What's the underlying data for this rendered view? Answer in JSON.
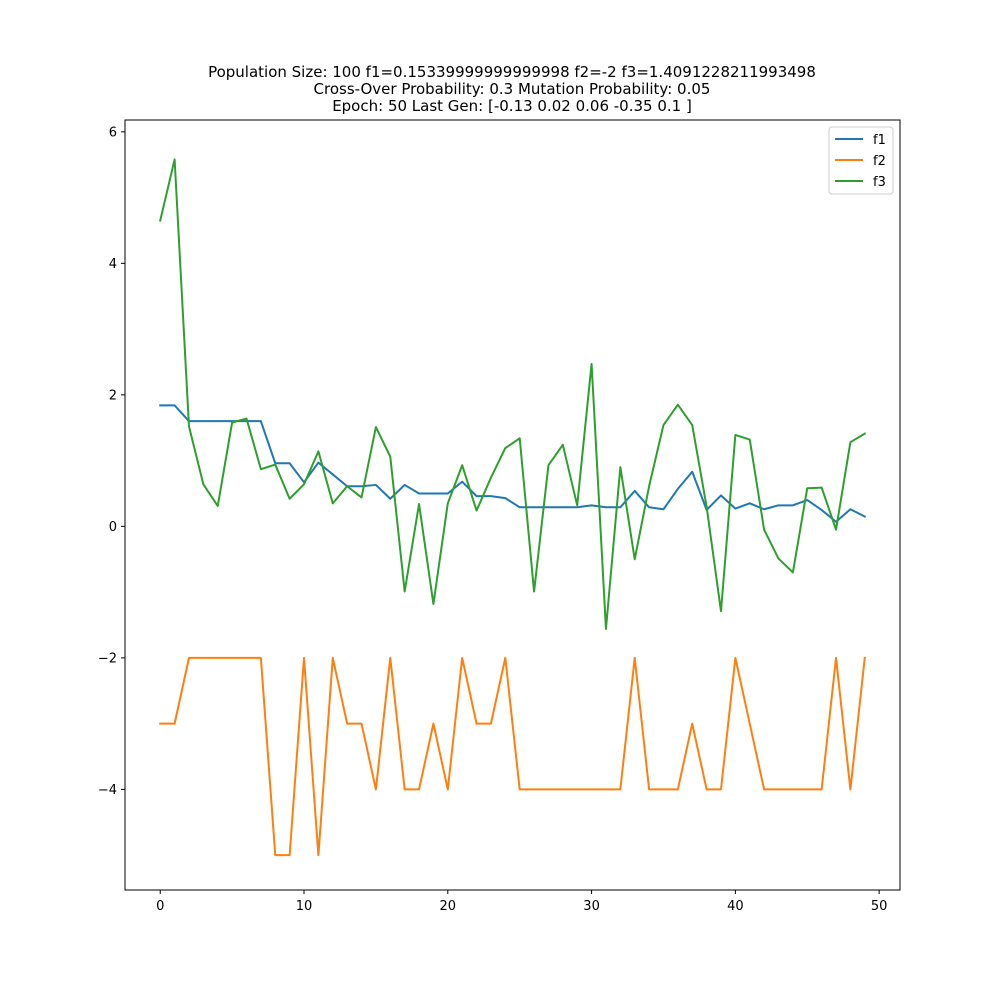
{
  "chart_data": {
    "type": "line",
    "title_lines": [
      "Population Size: 100 f1=0.15339999999999998 f2=-2 f3=1.4091228211993498",
      "Cross-Over Probability: 0.3 Mutation Probability: 0.05",
      "Epoch: 50 Last Gen: [-0.13  0.02  0.06 -0.35  0.1 ]"
    ],
    "xlabel": "",
    "ylabel": "",
    "xlim": [
      -2.45,
      51.45
    ],
    "ylim": [
      -5.53,
      6.18
    ],
    "xticks": [
      0,
      10,
      20,
      30,
      40,
      50
    ],
    "yticks": [
      6,
      4,
      2,
      0,
      -2,
      -4
    ],
    "ytick_labels": [
      "6",
      "4",
      "2",
      "0",
      "−2",
      "−4"
    ],
    "legend": "top-right",
    "grid": false,
    "x": [
      0,
      1,
      2,
      3,
      4,
      5,
      6,
      7,
      8,
      9,
      10,
      11,
      12,
      13,
      14,
      15,
      16,
      17,
      18,
      19,
      20,
      21,
      22,
      23,
      24,
      25,
      26,
      27,
      28,
      29,
      30,
      31,
      32,
      33,
      34,
      35,
      36,
      37,
      38,
      39,
      40,
      41,
      42,
      43,
      44,
      45,
      46,
      47,
      48,
      49
    ],
    "series": [
      {
        "name": "f1",
        "color": "#1f77b4",
        "values": [
          1.84,
          1.84,
          1.6,
          1.6,
          1.6,
          1.6,
          1.6,
          1.6,
          0.96,
          0.96,
          0.67,
          0.97,
          0.79,
          0.61,
          0.61,
          0.63,
          0.42,
          0.63,
          0.5,
          0.5,
          0.5,
          0.68,
          0.46,
          0.46,
          0.43,
          0.29,
          0.29,
          0.29,
          0.29,
          0.29,
          0.32,
          0.29,
          0.29,
          0.54,
          0.29,
          0.26,
          0.57,
          0.83,
          0.25,
          0.47,
          0.27,
          0.35,
          0.26,
          0.32,
          0.32,
          0.4,
          0.25,
          0.07,
          0.26,
          0.15
        ]
      },
      {
        "name": "f2",
        "color": "#ff7f0e",
        "values": [
          -3,
          -3,
          -2,
          -2,
          -2,
          -2,
          -2,
          -2,
          -5,
          -5,
          -2,
          -5,
          -2,
          -3,
          -3,
          -4,
          -2,
          -4,
          -4,
          -3,
          -4,
          -2,
          -3,
          -3,
          -2,
          -4,
          -4,
          -4,
          -4,
          -4,
          -4,
          -4,
          -4,
          -2,
          -4,
          -4,
          -4,
          -3,
          -4,
          -4,
          -2,
          -3,
          -4,
          -4,
          -4,
          -4,
          -4,
          -2,
          -4,
          -2
        ]
      },
      {
        "name": "f3",
        "color": "#2ca02c",
        "values": [
          4.65,
          5.58,
          1.52,
          0.64,
          0.31,
          1.58,
          1.64,
          0.87,
          0.94,
          0.42,
          0.64,
          1.14,
          0.35,
          0.61,
          0.44,
          1.51,
          1.06,
          -0.99,
          0.34,
          -1.18,
          0.35,
          0.93,
          0.24,
          0.74,
          1.19,
          1.34,
          -0.99,
          0.93,
          1.24,
          0.32,
          2.47,
          -1.56,
          0.9,
          -0.5,
          0.61,
          1.54,
          1.85,
          1.54,
          0.3,
          -1.29,
          1.39,
          1.32,
          -0.05,
          -0.49,
          -0.7,
          0.58,
          0.59,
          -0.05,
          1.28,
          1.41
        ]
      }
    ]
  }
}
